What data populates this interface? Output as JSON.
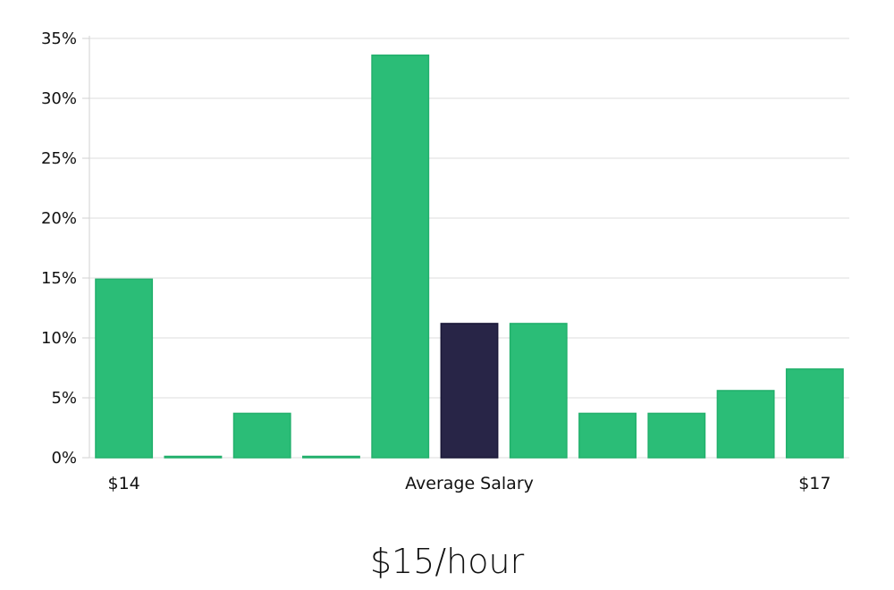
{
  "headline": "$15/hour",
  "chart_data": {
    "type": "bar",
    "title": "",
    "xlabel": "",
    "ylabel": "",
    "y_unit": "%",
    "ylim": [
      0,
      35
    ],
    "y_ticks": [
      0,
      5,
      10,
      15,
      20,
      25,
      30,
      35
    ],
    "y_tick_labels": [
      "0%",
      "5%",
      "10%",
      "15%",
      "20%",
      "25%",
      "30%",
      "35%"
    ],
    "grid": true,
    "values": [
      14.9,
      0.1,
      3.7,
      0.1,
      33.6,
      11.2,
      11.2,
      3.7,
      3.7,
      5.6,
      7.4
    ],
    "highlight_index": 5,
    "x_labels": [
      {
        "index": 0,
        "text": "$14"
      },
      {
        "index": 5,
        "text": "Average Salary"
      },
      {
        "index": 10,
        "text": "$17"
      }
    ],
    "colors": {
      "bar": "#2bbd77",
      "highlight": "#282547",
      "grid": "#dcdcdc"
    }
  }
}
